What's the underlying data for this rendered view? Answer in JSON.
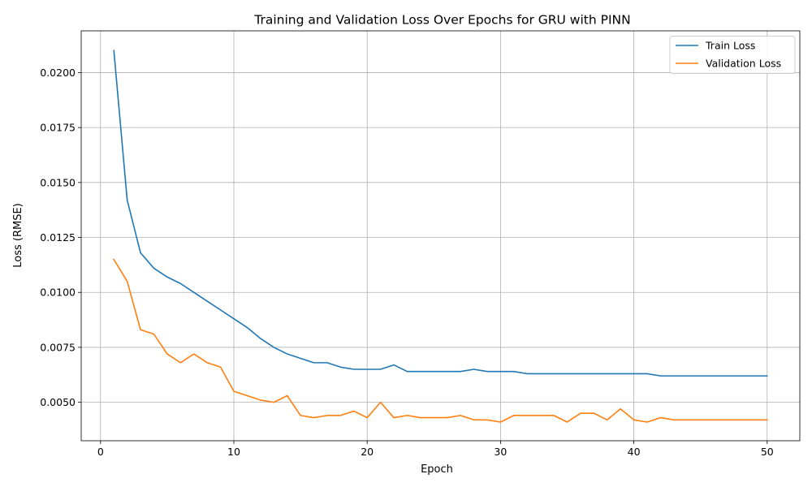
{
  "chart_data": {
    "type": "line",
    "title": "Training and Validation Loss Over Epochs for GRU with PINN",
    "xlabel": "Epoch",
    "ylabel": "Loss (RMSE)",
    "xlim": [
      -1.45,
      52.45
    ],
    "ylim": [
      0.00325,
      0.0219
    ],
    "xticks": [
      0,
      10,
      20,
      30,
      40,
      50
    ],
    "yticks": [
      0.005,
      0.0075,
      0.01,
      0.0125,
      0.015,
      0.0175,
      0.02
    ],
    "ytick_labels": [
      "0.0050",
      "0.0075",
      "0.0100",
      "0.0125",
      "0.0150",
      "0.0175",
      "0.0200"
    ],
    "grid": true,
    "legend_position": "top-right",
    "x": [
      1,
      2,
      3,
      4,
      5,
      6,
      7,
      8,
      9,
      10,
      11,
      12,
      13,
      14,
      15,
      16,
      17,
      18,
      19,
      20,
      21,
      22,
      23,
      24,
      25,
      26,
      27,
      28,
      29,
      30,
      31,
      32,
      33,
      34,
      35,
      36,
      37,
      38,
      39,
      40,
      41,
      42,
      43,
      44,
      45,
      46,
      47,
      48,
      49,
      50
    ],
    "series": [
      {
        "name": "Train Loss",
        "color": "#1f77b4",
        "values": [
          0.021,
          0.0142,
          0.0118,
          0.0111,
          0.0107,
          0.0104,
          0.01,
          0.0096,
          0.0092,
          0.0088,
          0.0084,
          0.0079,
          0.0075,
          0.0072,
          0.007,
          0.0068,
          0.0068,
          0.0066,
          0.0065,
          0.0065,
          0.0065,
          0.0067,
          0.0064,
          0.0064,
          0.0064,
          0.0064,
          0.0064,
          0.0065,
          0.0064,
          0.0064,
          0.0064,
          0.0063,
          0.0063,
          0.0063,
          0.0063,
          0.0063,
          0.0063,
          0.0063,
          0.0063,
          0.0063,
          0.0063,
          0.0062,
          0.0062,
          0.0062,
          0.0062,
          0.0062,
          0.0062,
          0.0062,
          0.0062,
          0.0062
        ]
      },
      {
        "name": "Validation Loss",
        "color": "#ff7f0e",
        "values": [
          0.0115,
          0.0105,
          0.0083,
          0.0081,
          0.0072,
          0.0068,
          0.0072,
          0.0068,
          0.0066,
          0.0055,
          0.0053,
          0.0051,
          0.005,
          0.0053,
          0.0044,
          0.0043,
          0.0044,
          0.0044,
          0.0046,
          0.0043,
          0.005,
          0.0043,
          0.0044,
          0.0043,
          0.0043,
          0.0043,
          0.0044,
          0.0042,
          0.0042,
          0.0041,
          0.0044,
          0.0044,
          0.0044,
          0.0044,
          0.0041,
          0.0045,
          0.0045,
          0.0042,
          0.0047,
          0.0042,
          0.0041,
          0.0043,
          0.0042,
          0.0042,
          0.0042,
          0.0042,
          0.0042,
          0.0042,
          0.0042,
          0.0042
        ]
      }
    ]
  }
}
